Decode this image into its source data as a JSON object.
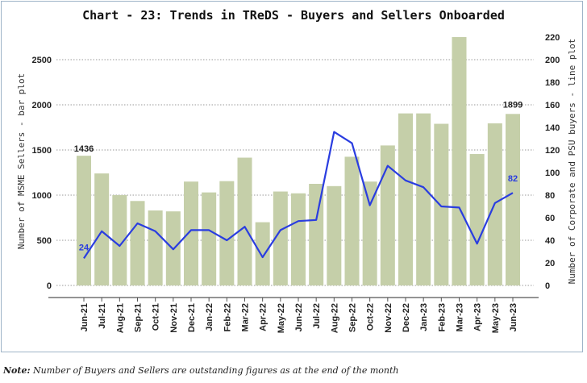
{
  "chart_data": {
    "type": "bar+line",
    "title": "Chart - 23: Trends in TReDS - Buyers and Sellers Onboarded",
    "categories": [
      "Jun-21",
      "Jul-21",
      "Aug-21",
      "Sep-21",
      "Oct-21",
      "Nov-21",
      "Dec-21",
      "Jan-22",
      "Feb-22",
      "Mar-22",
      "Apr-22",
      "May-22",
      "Jun-22",
      "Jul-22",
      "Aug-22",
      "Sep-22",
      "Oct-22",
      "Nov-22",
      "Dec-22",
      "Jan-23",
      "Feb-23",
      "Mar-23",
      "Apr-23",
      "May-23",
      "Jun-23"
    ],
    "series": [
      {
        "type": "bar",
        "axis": "left",
        "color": "#c5cfa9",
        "values": [
          1436,
          1240,
          1000,
          935,
          830,
          820,
          1150,
          1030,
          1155,
          1415,
          700,
          1040,
          1020,
          1125,
          1100,
          1425,
          1150,
          1550,
          1905,
          1905,
          1790,
          2750,
          1455,
          1795,
          1899
        ]
      },
      {
        "type": "line",
        "axis": "right",
        "color": "#2a3de0",
        "values": [
          24,
          48,
          35,
          55,
          48,
          32,
          49,
          49,
          40,
          52,
          25,
          49,
          57,
          58,
          136,
          126,
          71,
          106,
          93,
          87,
          70,
          69,
          37,
          73,
          82
        ]
      }
    ],
    "data_labels": {
      "bar_first": "1436",
      "bar_last": "1899",
      "line_first": "24",
      "line_last": "82"
    },
    "left_axis": {
      "label": "Number of MSME Sellers - bar plot",
      "ylim": [
        0,
        2750
      ],
      "ticks": [
        "0",
        "500",
        "1000",
        "1500",
        "2000",
        "2500"
      ]
    },
    "right_axis": {
      "label": "Number of Corporate and PSU buyers - line plot",
      "ylim": [
        0,
        220
      ],
      "ticks": [
        "0",
        "20",
        "40",
        "60",
        "80",
        "100",
        "120",
        "140",
        "160",
        "180",
        "200",
        "220"
      ]
    },
    "grid": "horizontal dotted",
    "legend": "none"
  },
  "note": {
    "prefix": "Note:",
    "text": " Number of Buyers and Sellers are outstanding figures as at the end of the month"
  }
}
